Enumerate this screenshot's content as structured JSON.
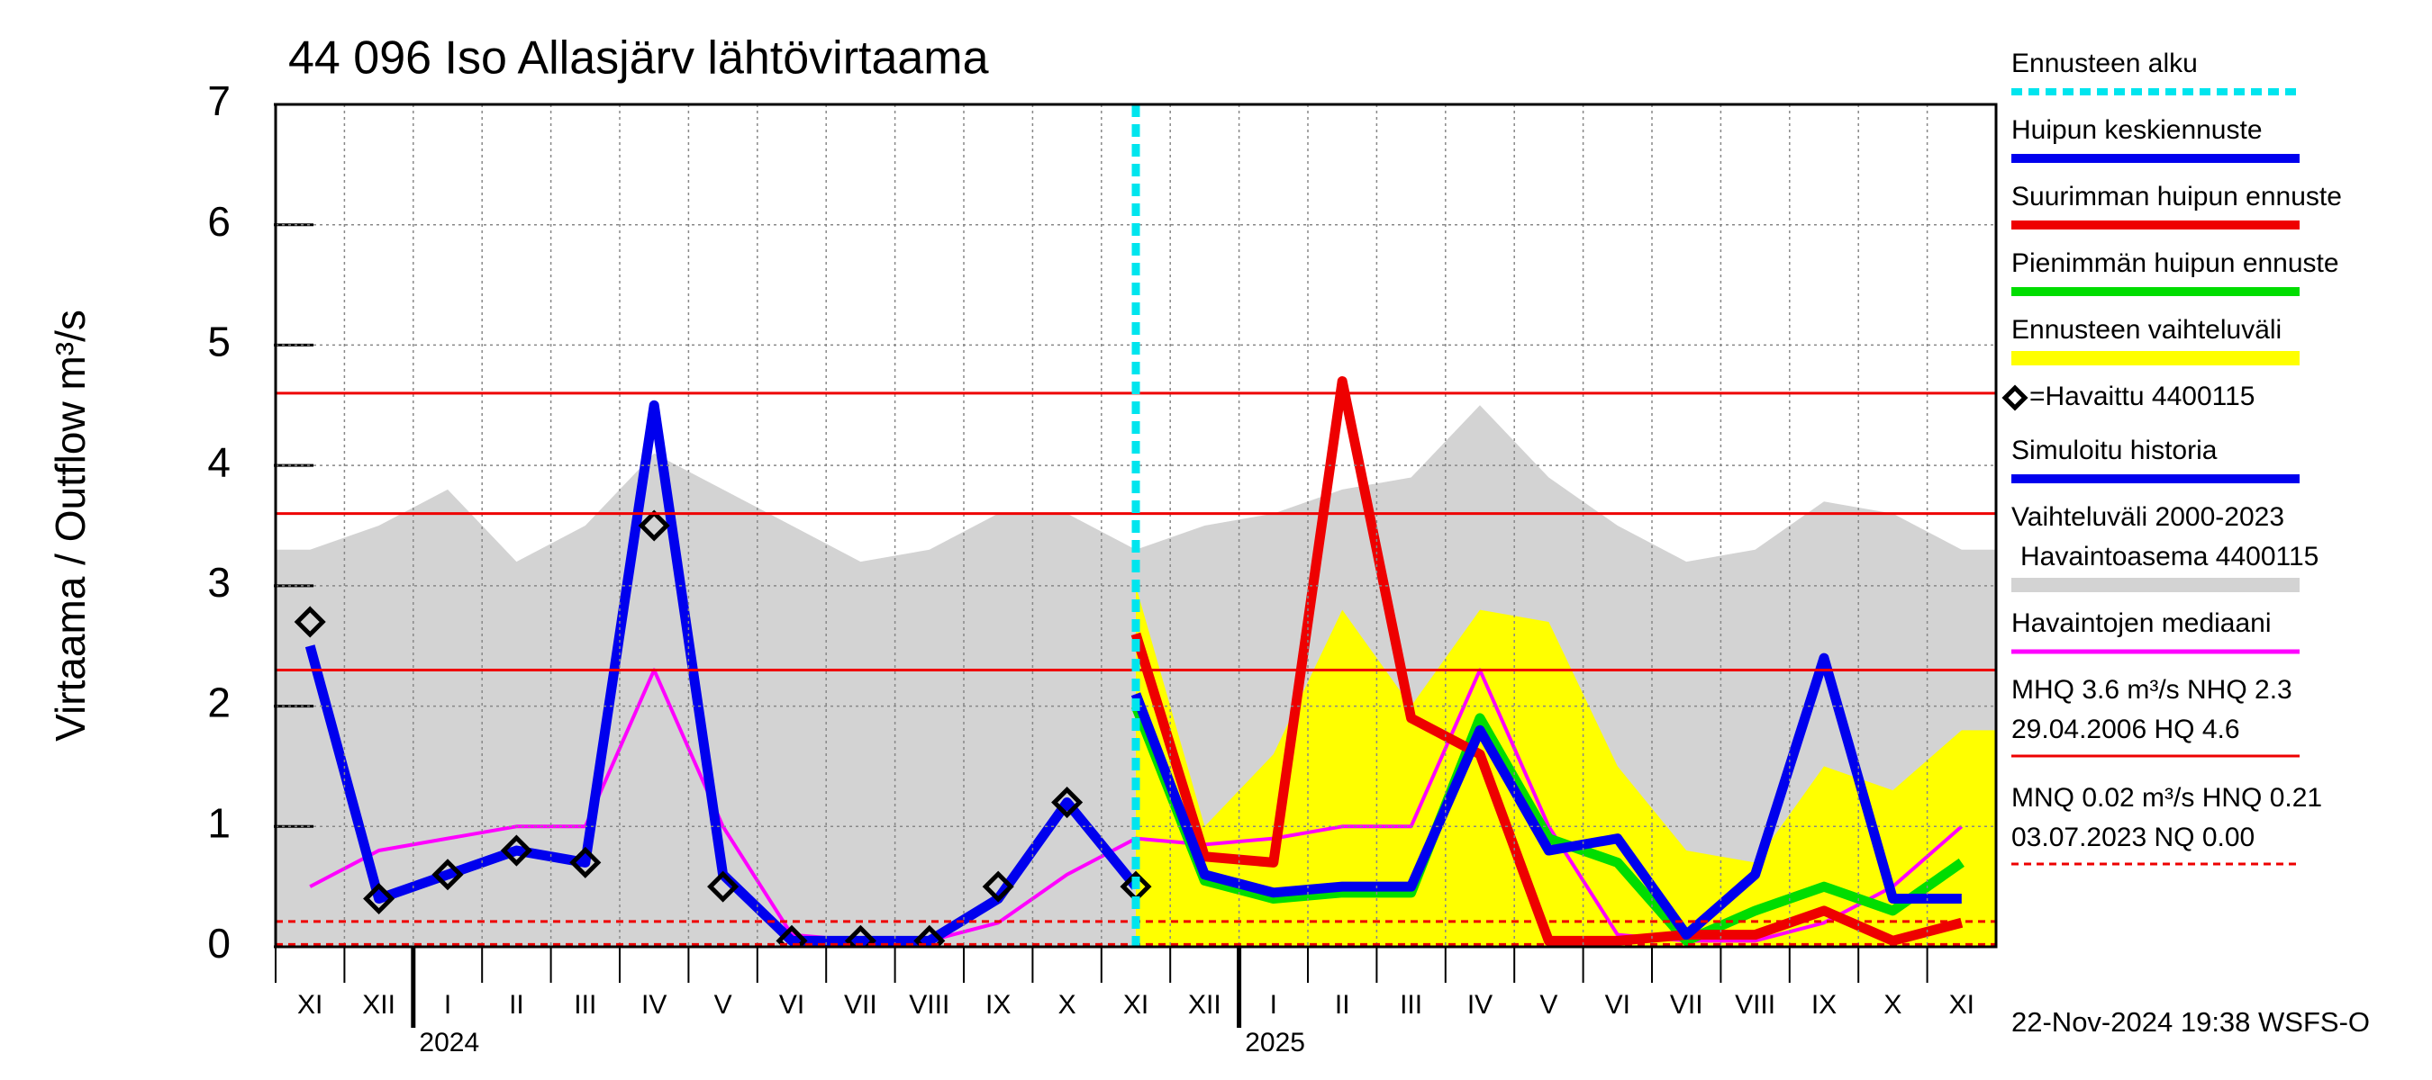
{
  "chart_data": {
    "type": "line",
    "title": "44 096 Iso Allasjärv lähtövirtaama",
    "y_label": "Virtaama / Outflow    m³/s",
    "categories": [
      "XI",
      "XII",
      "I",
      "II",
      "III",
      "IV",
      "V",
      "VI",
      "VII",
      "VIII",
      "IX",
      "X",
      "XI",
      "XII",
      "I",
      "II",
      "III",
      "IV",
      "V",
      "VI",
      "VII",
      "VIII",
      "IX",
      "X",
      "XI"
    ],
    "year_labels": [
      {
        "label": "2024",
        "category": 2
      },
      {
        "label": "2025",
        "category": 14
      }
    ],
    "ylim": [
      0,
      7
    ],
    "yticks": [
      0,
      1,
      2,
      3,
      4,
      5,
      6,
      7
    ],
    "grid": true,
    "forecast_start": {
      "name": "Ennusteen alku",
      "color": "#00e5ee",
      "category": 12
    },
    "series": [
      {
        "name": "Vaihteluväli 2000-2023",
        "note": "Havaintoasema 4400115",
        "style": "area",
        "color": "#d3d3d3",
        "values": [
          3.3,
          3.5,
          3.8,
          3.2,
          3.5,
          4.1,
          3.8,
          3.5,
          3.2,
          3.3,
          3.6,
          3.6,
          3.3,
          3.5,
          3.6,
          3.8,
          3.9,
          4.5,
          3.9,
          3.5,
          3.2,
          3.3,
          3.7,
          3.6,
          3.3
        ]
      },
      {
        "name": "Ennusteen vaihteluväli",
        "style": "area",
        "color": "#ffff00",
        "values": [
          null,
          null,
          null,
          null,
          null,
          null,
          null,
          null,
          null,
          null,
          null,
          null,
          3.0,
          1.0,
          1.6,
          2.8,
          2.0,
          2.8,
          2.7,
          1.5,
          0.8,
          0.7,
          1.5,
          1.3,
          1.8
        ]
      },
      {
        "name": "Havaintojen mediaani",
        "style": "line",
        "color": "#ff00ff",
        "values": [
          0.5,
          0.8,
          0.9,
          1.0,
          1.0,
          2.3,
          1.0,
          0.1,
          0.05,
          0.05,
          0.2,
          0.6,
          0.9,
          0.85,
          0.9,
          1.0,
          1.0,
          2.3,
          1.0,
          0.1,
          0.05,
          0.05,
          0.2,
          0.5,
          1.0
        ]
      },
      {
        "name": "Pienimmän huipun ennuste",
        "style": "line",
        "color": "#00dd00",
        "values": [
          null,
          null,
          null,
          null,
          null,
          null,
          null,
          null,
          null,
          null,
          null,
          null,
          2.0,
          0.55,
          0.4,
          0.45,
          0.45,
          1.9,
          0.9,
          0.7,
          0.05,
          0.3,
          0.5,
          0.3,
          0.7
        ]
      },
      {
        "name": "Suurimman huipun ennuste",
        "style": "line",
        "color": "#ee0000",
        "values": [
          null,
          null,
          null,
          null,
          null,
          null,
          null,
          null,
          null,
          null,
          null,
          null,
          2.6,
          0.75,
          0.7,
          4.7,
          1.9,
          1.6,
          0.05,
          0.05,
          0.1,
          0.1,
          0.3,
          0.05,
          0.2
        ]
      },
      {
        "name": "Huipun keskiennuste",
        "style": "line",
        "color": "#0000ee",
        "values": [
          null,
          null,
          null,
          null,
          null,
          null,
          null,
          null,
          null,
          null,
          null,
          null,
          2.1,
          0.6,
          0.45,
          0.5,
          0.5,
          1.8,
          0.8,
          0.9,
          0.1,
          0.6,
          2.4,
          0.4,
          0.4
        ]
      },
      {
        "name": "Simuloitu historia",
        "style": "line",
        "color": "#0000ee",
        "values": [
          2.5,
          0.4,
          0.6,
          0.8,
          0.7,
          4.5,
          0.6,
          0.05,
          0.05,
          0.05,
          0.4,
          1.2,
          0.5,
          null,
          null,
          null,
          null,
          null,
          null,
          null,
          null,
          null,
          null,
          null,
          null
        ]
      },
      {
        "name": "=Havaittu 4400115",
        "style": "markers",
        "color": "#000000",
        "values": [
          2.7,
          0.4,
          0.6,
          0.8,
          0.7,
          3.5,
          0.5,
          0.05,
          0.05,
          0.05,
          0.5,
          1.2,
          0.5,
          null,
          null,
          null,
          null,
          null,
          null,
          null,
          null,
          null,
          null,
          null,
          null
        ]
      }
    ],
    "reference_lines": [
      {
        "value": 4.6,
        "style": "solid",
        "color": "#ee0000"
      },
      {
        "value": 3.6,
        "style": "solid",
        "color": "#ee0000"
      },
      {
        "value": 2.3,
        "style": "solid",
        "color": "#ee0000"
      },
      {
        "value": 0.21,
        "style": "dashed",
        "color": "#ee0000"
      },
      {
        "value": 0.02,
        "style": "dashed",
        "color": "#ee0000"
      }
    ],
    "legend_order": [
      "forecast",
      5,
      4,
      3,
      1,
      7,
      6,
      0,
      2
    ],
    "stats": [
      "MHQ  3.6 m³/s NHQ  2.3",
      "29.04.2006 HQ  4.6",
      "MNQ 0.02 m³/s HNQ 0.21",
      "03.07.2023 NQ 0.00"
    ],
    "footer": "22-Nov-2024 19:38 WSFS-O"
  }
}
